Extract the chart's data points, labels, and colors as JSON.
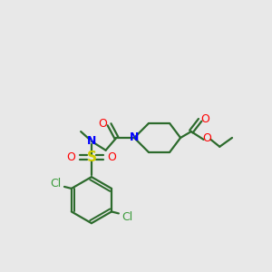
{
  "bg_color": "#e8e8e8",
  "bond_color": "#2d6b2d",
  "N_color": "#0000ff",
  "O_color": "#ff0000",
  "S_color": "#cccc00",
  "Cl_color": "#3a9a3a",
  "line_width": 1.6,
  "figsize": [
    3.0,
    3.0
  ],
  "dpi": 100,
  "xlim": [
    0,
    300
  ],
  "ylim": [
    0,
    300
  ]
}
